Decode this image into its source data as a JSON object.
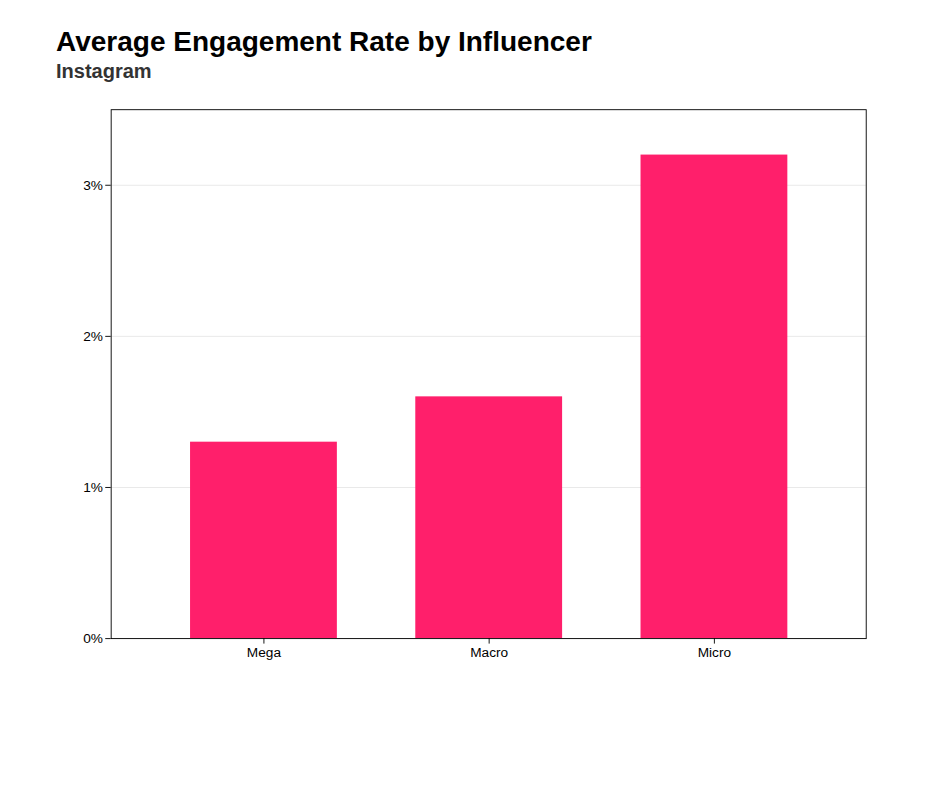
{
  "chart_data": {
    "type": "bar",
    "title": "Average Engagement Rate by Influencer",
    "subtitle": "Instagram",
    "categories": [
      "Mega",
      "Macro",
      "Micro"
    ],
    "values": [
      1.3,
      1.6,
      3.2
    ],
    "color": "#FF1F6B",
    "ylim": [
      0,
      3.5
    ],
    "yticks": [
      {
        "value": 0,
        "label": "0%"
      },
      {
        "value": 1,
        "label": "1%"
      },
      {
        "value": 2,
        "label": "2%"
      },
      {
        "value": 3,
        "label": "3%"
      }
    ],
    "grid": true
  }
}
